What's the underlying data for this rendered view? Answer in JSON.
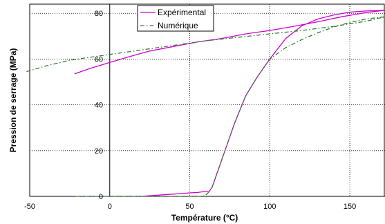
{
  "chart_data": {
    "type": "line",
    "xlabel": "Température (°C)",
    "ylabel": "Pression de serrage (MPa)",
    "xlim": [
      -50,
      172
    ],
    "ylim": [
      0,
      84
    ],
    "xticks": [
      -50,
      0,
      50,
      100,
      150
    ],
    "yticks": [
      0,
      20,
      40,
      60,
      80
    ],
    "grid": true,
    "legend": "top-center",
    "series": [
      {
        "name": "Expérimental",
        "color": "#cc00cc",
        "style": "solid",
        "x": [
          -22,
          -12,
          0,
          12,
          25,
          40,
          55,
          70,
          85,
          100,
          115,
          130,
          145,
          160,
          172,
          160,
          150,
          140,
          130,
          120,
          110,
          100,
          92,
          85,
          78,
          72,
          67,
          64,
          62,
          60,
          58,
          55,
          50,
          40,
          30,
          20
        ],
        "y": [
          53.5,
          56,
          58.5,
          61,
          63.5,
          65.5,
          67.5,
          69,
          71,
          72.5,
          74.3,
          76.3,
          78.5,
          80.3,
          81.3,
          81,
          80.5,
          79.3,
          77.5,
          74.5,
          69,
          60,
          52,
          44,
          32,
          20,
          10,
          4,
          2,
          2,
          2,
          1.7,
          1.5,
          1,
          0.5,
          0
        ]
      },
      {
        "name": "Numérique",
        "color": "#2e7d32",
        "style": "dashdot",
        "x": [
          -52,
          -40,
          -25,
          -10,
          0,
          20,
          40,
          60,
          80,
          100,
          120,
          140,
          160,
          172,
          160,
          150,
          140,
          130,
          120,
          110,
          100,
          92,
          85,
          78,
          72,
          67,
          64,
          62,
          60,
          58,
          55,
          40,
          20,
          0,
          -22
        ],
        "y": [
          54.5,
          57,
          59.5,
          61,
          62,
          64,
          66,
          68,
          69.5,
          71,
          72.5,
          74.3,
          76.5,
          78.5,
          77.5,
          76,
          74,
          71.5,
          68.5,
          65,
          60,
          52,
          44,
          32,
          20,
          10,
          4,
          2,
          0.5,
          0,
          0,
          0,
          0,
          0,
          0
        ]
      }
    ]
  }
}
